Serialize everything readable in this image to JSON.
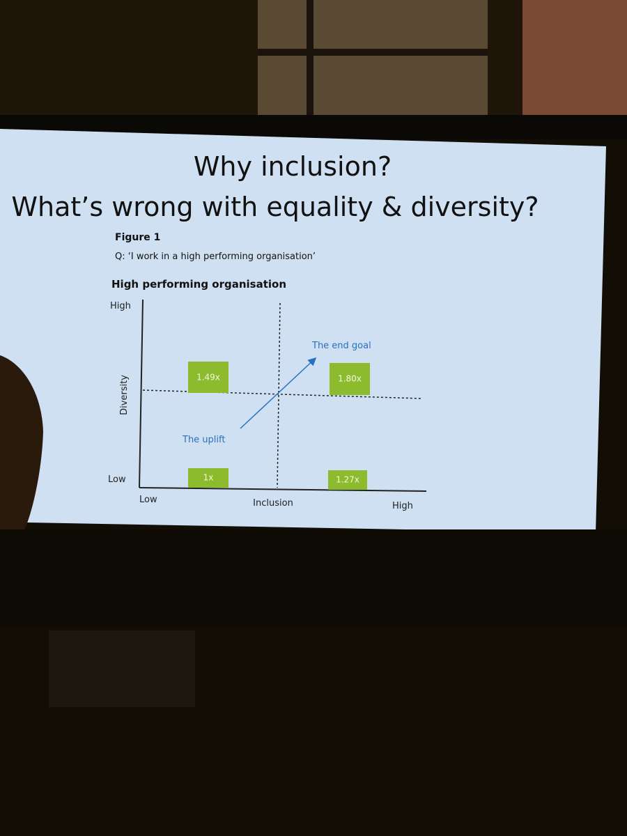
{
  "slide": {
    "title": [
      "Why inclusion?",
      "What’s wrong with equality & diversity?"
    ],
    "figure": "Figure 1",
    "question": "Q: ‘I work in a high performing organisation’",
    "subtitle": "High performing organisation",
    "y_axis": {
      "label": "Diversity",
      "high": "High",
      "low": "Low"
    },
    "x_axis": {
      "label": "Inclusion",
      "low": "Low",
      "high": "High"
    },
    "quadrants": [
      {
        "position": "low inclusion, high diversity",
        "label": "1.49x"
      },
      {
        "position": "high inclusion, high diversity",
        "label": "1.80x"
      },
      {
        "position": "low inclusion, low diversity",
        "label": "1x"
      },
      {
        "position": "high inclusion, low diversity",
        "label": "1.27x"
      }
    ],
    "annotations": {
      "end_goal": "The end goal",
      "uplift": "The uplift"
    }
  }
}
